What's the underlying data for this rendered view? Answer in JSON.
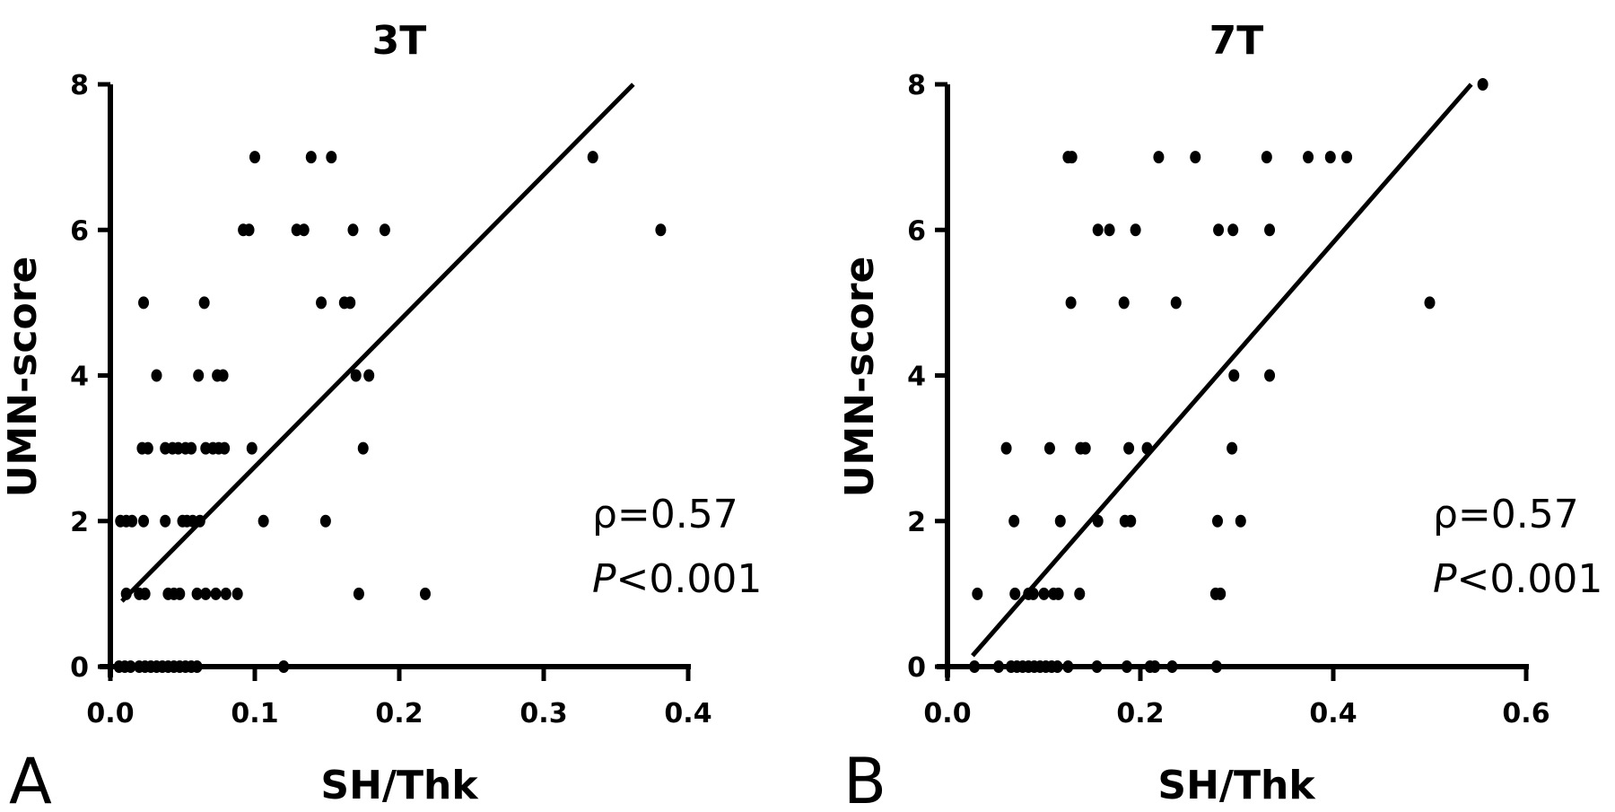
{
  "chart_data": [
    {
      "panel_label": "A",
      "type": "scatter",
      "title": "3T",
      "xlabel": "SH/Thk",
      "ylabel": "UMN-score",
      "xlim": [
        0,
        0.4
      ],
      "ylim": [
        0,
        8
      ],
      "xticks": [
        "0.0",
        "0.1",
        "0.2",
        "0.3",
        "0.4"
      ],
      "yticks": [
        "0",
        "2",
        "4",
        "6",
        "8"
      ],
      "grid": false,
      "annotation": {
        "rho": "ρ=0.57",
        "p_prefix": "P",
        "p_rest": "<0.001"
      },
      "regression_line": {
        "x": [
          0.008,
          0.362
        ],
        "y": [
          0.9,
          8
        ]
      },
      "points": [
        [
          0.1,
          7
        ],
        [
          0.139,
          7
        ],
        [
          0.153,
          7
        ],
        [
          0.334,
          7
        ],
        [
          0.092,
          6
        ],
        [
          0.096,
          6
        ],
        [
          0.129,
          6
        ],
        [
          0.134,
          6
        ],
        [
          0.168,
          6
        ],
        [
          0.19,
          6
        ],
        [
          0.381,
          6
        ],
        [
          0.023,
          5
        ],
        [
          0.065,
          5
        ],
        [
          0.146,
          5
        ],
        [
          0.162,
          5
        ],
        [
          0.166,
          5
        ],
        [
          0.032,
          4
        ],
        [
          0.061,
          4
        ],
        [
          0.074,
          4
        ],
        [
          0.078,
          4
        ],
        [
          0.17,
          4
        ],
        [
          0.179,
          4
        ],
        [
          0.022,
          3
        ],
        [
          0.026,
          3
        ],
        [
          0.038,
          3
        ],
        [
          0.043,
          3
        ],
        [
          0.047,
          3
        ],
        [
          0.052,
          3
        ],
        [
          0.056,
          3
        ],
        [
          0.066,
          3
        ],
        [
          0.071,
          3
        ],
        [
          0.075,
          3
        ],
        [
          0.079,
          3
        ],
        [
          0.098,
          3
        ],
        [
          0.175,
          3
        ],
        [
          0.007,
          2
        ],
        [
          0.011,
          2
        ],
        [
          0.015,
          2
        ],
        [
          0.023,
          2
        ],
        [
          0.038,
          2
        ],
        [
          0.05,
          2
        ],
        [
          0.053,
          2
        ],
        [
          0.057,
          2
        ],
        [
          0.062,
          2
        ],
        [
          0.106,
          2
        ],
        [
          0.149,
          2
        ],
        [
          0.011,
          1
        ],
        [
          0.02,
          1
        ],
        [
          0.024,
          1
        ],
        [
          0.04,
          1
        ],
        [
          0.044,
          1
        ],
        [
          0.048,
          1
        ],
        [
          0.06,
          1
        ],
        [
          0.066,
          1
        ],
        [
          0.073,
          1
        ],
        [
          0.08,
          1
        ],
        [
          0.088,
          1
        ],
        [
          0.172,
          1
        ],
        [
          0.218,
          1
        ],
        [
          0.006,
          0
        ],
        [
          0.01,
          0
        ],
        [
          0.014,
          0
        ],
        [
          0.02,
          0
        ],
        [
          0.024,
          0
        ],
        [
          0.028,
          0
        ],
        [
          0.032,
          0
        ],
        [
          0.036,
          0
        ],
        [
          0.04,
          0
        ],
        [
          0.044,
          0
        ],
        [
          0.048,
          0
        ],
        [
          0.052,
          0
        ],
        [
          0.056,
          0
        ],
        [
          0.06,
          0
        ],
        [
          0.12,
          0
        ]
      ]
    },
    {
      "panel_label": "B",
      "type": "scatter",
      "title": "7T",
      "xlabel": "SH/Thk",
      "ylabel": "UMN-score",
      "xlim": [
        0,
        0.6
      ],
      "ylim": [
        0,
        8
      ],
      "xticks": [
        "0.0",
        "0.2",
        "0.4",
        "0.6"
      ],
      "yticks": [
        "0",
        "2",
        "4",
        "6",
        "8"
      ],
      "grid": false,
      "annotation": {
        "rho": "ρ=0.57",
        "p_prefix": "P",
        "p_rest": "<0.001"
      },
      "regression_line": {
        "x": [
          0.026,
          0.543
        ],
        "y": [
          0.15,
          8
        ]
      },
      "points": [
        [
          0.555,
          8
        ],
        [
          0.125,
          7
        ],
        [
          0.129,
          7
        ],
        [
          0.219,
          7
        ],
        [
          0.257,
          7
        ],
        [
          0.331,
          7
        ],
        [
          0.374,
          7
        ],
        [
          0.397,
          7
        ],
        [
          0.414,
          7
        ],
        [
          0.156,
          6
        ],
        [
          0.168,
          6
        ],
        [
          0.195,
          6
        ],
        [
          0.281,
          6
        ],
        [
          0.296,
          6
        ],
        [
          0.334,
          6
        ],
        [
          0.128,
          5
        ],
        [
          0.183,
          5
        ],
        [
          0.237,
          5
        ],
        [
          0.5,
          5
        ],
        [
          0.297,
          4
        ],
        [
          0.334,
          4
        ],
        [
          0.061,
          3
        ],
        [
          0.106,
          3
        ],
        [
          0.138,
          3
        ],
        [
          0.143,
          3
        ],
        [
          0.188,
          3
        ],
        [
          0.207,
          3
        ],
        [
          0.295,
          3
        ],
        [
          0.069,
          2
        ],
        [
          0.117,
          2
        ],
        [
          0.156,
          2
        ],
        [
          0.184,
          2
        ],
        [
          0.19,
          2
        ],
        [
          0.28,
          2
        ],
        [
          0.304,
          2
        ],
        [
          0.031,
          1
        ],
        [
          0.07,
          1
        ],
        [
          0.084,
          1
        ],
        [
          0.089,
          1
        ],
        [
          0.1,
          1
        ],
        [
          0.11,
          1
        ],
        [
          0.115,
          1
        ],
        [
          0.137,
          1
        ],
        [
          0.278,
          1
        ],
        [
          0.283,
          1
        ],
        [
          0.028,
          0
        ],
        [
          0.053,
          0
        ],
        [
          0.066,
          0
        ],
        [
          0.072,
          0
        ],
        [
          0.078,
          0
        ],
        [
          0.084,
          0
        ],
        [
          0.09,
          0
        ],
        [
          0.096,
          0
        ],
        [
          0.102,
          0
        ],
        [
          0.108,
          0
        ],
        [
          0.114,
          0
        ],
        [
          0.125,
          0
        ],
        [
          0.155,
          0
        ],
        [
          0.186,
          0
        ],
        [
          0.21,
          0
        ],
        [
          0.215,
          0
        ],
        [
          0.233,
          0
        ],
        [
          0.279,
          0
        ]
      ]
    }
  ]
}
